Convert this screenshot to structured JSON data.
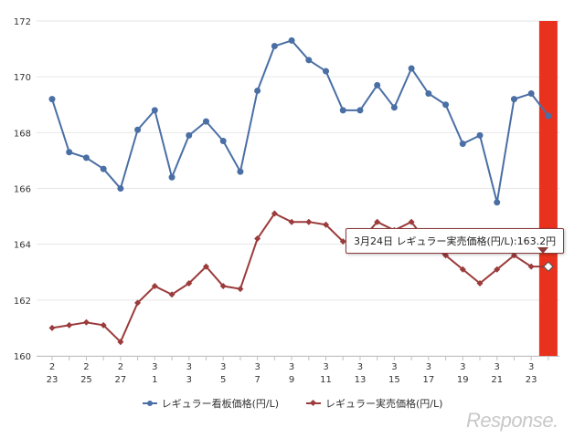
{
  "chart_data": {
    "type": "line",
    "x_labels": [
      [
        "2",
        "23"
      ],
      [
        "",
        ""
      ],
      [
        "2",
        "25"
      ],
      [
        "",
        ""
      ],
      [
        "2",
        "27"
      ],
      [
        "",
        ""
      ],
      [
        "3",
        "1"
      ],
      [
        "",
        ""
      ],
      [
        "3",
        "3"
      ],
      [
        "",
        ""
      ],
      [
        "3",
        "5"
      ],
      [
        "",
        ""
      ],
      [
        "3",
        "7"
      ],
      [
        "",
        ""
      ],
      [
        "3",
        "9"
      ],
      [
        "",
        ""
      ],
      [
        "3",
        "11"
      ],
      [
        "",
        ""
      ],
      [
        "3",
        "13"
      ],
      [
        "",
        ""
      ],
      [
        "3",
        "15"
      ],
      [
        "",
        ""
      ],
      [
        "3",
        "17"
      ],
      [
        "",
        ""
      ],
      [
        "3",
        "19"
      ],
      [
        "",
        ""
      ],
      [
        "3",
        "21"
      ],
      [
        "",
        ""
      ],
      [
        "3",
        "23"
      ],
      [
        "",
        ""
      ]
    ],
    "y_ticks": [
      "160",
      "162",
      "164",
      "166",
      "168",
      "170",
      "172"
    ],
    "ylim": [
      160,
      172
    ],
    "grid": "horizontal",
    "legend_position": "bottom",
    "series": [
      {
        "name": "レギュラー看板価格(円/L)",
        "color": "#4a6fa5",
        "marker": "circle",
        "values": [
          169.2,
          167.3,
          167.1,
          166.7,
          166.0,
          168.1,
          168.8,
          166.4,
          167.9,
          168.4,
          167.7,
          166.6,
          169.5,
          171.1,
          171.3,
          170.6,
          170.2,
          168.8,
          168.8,
          169.7,
          168.9,
          170.3,
          169.4,
          169.0,
          167.6,
          167.9,
          165.5,
          169.2,
          169.4,
          168.6
        ]
      },
      {
        "name": "レギュラー実売価格(円/L)",
        "color": "#9b3b3b",
        "marker": "diamond",
        "values": [
          161.0,
          161.1,
          161.2,
          161.1,
          160.5,
          161.9,
          162.5,
          162.2,
          162.6,
          163.2,
          162.5,
          162.4,
          164.2,
          165.1,
          164.8,
          164.8,
          164.7,
          164.1,
          164.1,
          164.8,
          164.5,
          164.8,
          164.0,
          163.6,
          163.1,
          162.6,
          163.1,
          163.6,
          163.2,
          163.2
        ]
      }
    ],
    "highlight_index": 29,
    "highlight_color": "#e8321e",
    "tooltip": "3月24日 レギュラー実売価格(円/L):163.2円"
  },
  "legend": {
    "series1": "レギュラー看板価格(円/L)",
    "series2": "レギュラー実売価格(円/L)"
  },
  "logo": "Response."
}
